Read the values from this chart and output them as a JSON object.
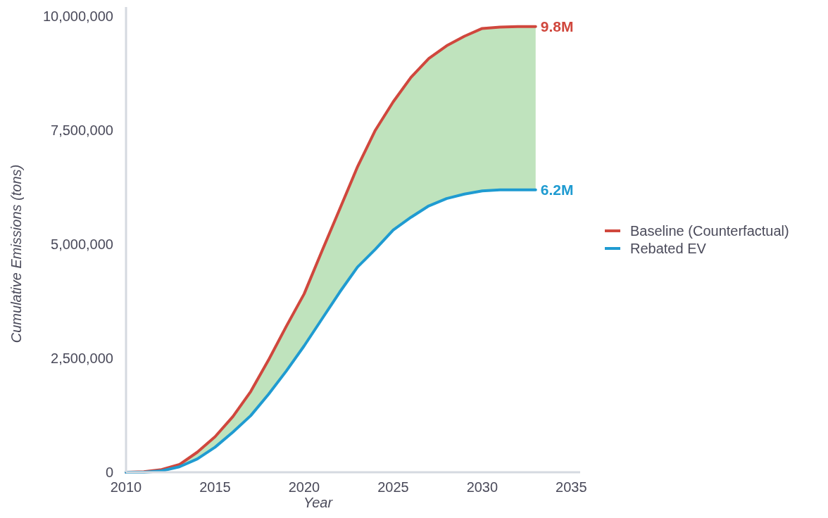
{
  "chart_data": {
    "type": "line",
    "xlabel": "Year",
    "ylabel": "Cumulative Emissions (tons)",
    "x": [
      2010,
      2011,
      2012,
      2013,
      2014,
      2015,
      2016,
      2017,
      2018,
      2019,
      2020,
      2021,
      2022,
      2023,
      2024,
      2025,
      2026,
      2027,
      2028,
      2029,
      2030,
      2031,
      2032,
      2033
    ],
    "series": [
      {
        "name": "Baseline (Counterfactual)",
        "color": "#d0473d",
        "values": [
          0,
          10000,
          60000,
          170000,
          440000,
          780000,
          1220000,
          1770000,
          2460000,
          3200000,
          3910000,
          4850000,
          5770000,
          6700000,
          7500000,
          8120000,
          8660000,
          9070000,
          9350000,
          9560000,
          9730000,
          9760000,
          9770000,
          9770000
        ],
        "value_labels": [
          null,
          null,
          null,
          null,
          null,
          null,
          null,
          null,
          null,
          null,
          null,
          null,
          null,
          null,
          null,
          null,
          null,
          null,
          null,
          null,
          null,
          null,
          null,
          "9.8M"
        ],
        "lower": [
          0,
          0,
          30000,
          120000,
          290000,
          550000,
          880000,
          1240000,
          1710000,
          2220000,
          2770000,
          3360000,
          3950000,
          4500000,
          4890000,
          5310000,
          5590000,
          5840000,
          6000000,
          6100000,
          6170000,
          6190000,
          6190000,
          6190000
        ],
        "upper": [
          0,
          10000,
          60000,
          170000,
          440000,
          780000,
          1220000,
          1770000,
          2460000,
          3200000,
          3910000,
          4850000,
          5770000,
          6700000,
          7500000,
          8120000,
          8660000,
          9070000,
          9350000,
          9560000,
          9730000,
          9760000,
          9770000,
          9770000
        ]
      },
      {
        "name": "Rebated EV",
        "color": "#1f9bd1",
        "values": [
          0,
          0,
          30000,
          120000,
          290000,
          550000,
          880000,
          1240000,
          1710000,
          2220000,
          2770000,
          3360000,
          3950000,
          4500000,
          4890000,
          5310000,
          5590000,
          5840000,
          6000000,
          6100000,
          6170000,
          6190000,
          6190000,
          6190000
        ],
        "value_labels": [
          null,
          null,
          null,
          null,
          null,
          null,
          null,
          null,
          null,
          null,
          null,
          null,
          null,
          null,
          null,
          null,
          null,
          null,
          null,
          null,
          null,
          null,
          null,
          "6.2M"
        ]
      }
    ],
    "xlim": [
      2010,
      2035.5
    ],
    "xticks": [
      2010,
      2015,
      2020,
      2025,
      2030,
      2035
    ],
    "ylim": [
      0,
      10200000
    ],
    "yticks": [
      {
        "value": 0,
        "label": "0"
      },
      {
        "value": 2500000,
        "label": "2,500,000"
      },
      {
        "value": 5000000,
        "label": "5,000,000"
      },
      {
        "value": 7500000,
        "label": "7,500,000"
      },
      {
        "value": 10000000,
        "label": "10,000,000"
      }
    ],
    "grid": false,
    "legend": "right",
    "marker": "none",
    "line_style": "solid"
  }
}
